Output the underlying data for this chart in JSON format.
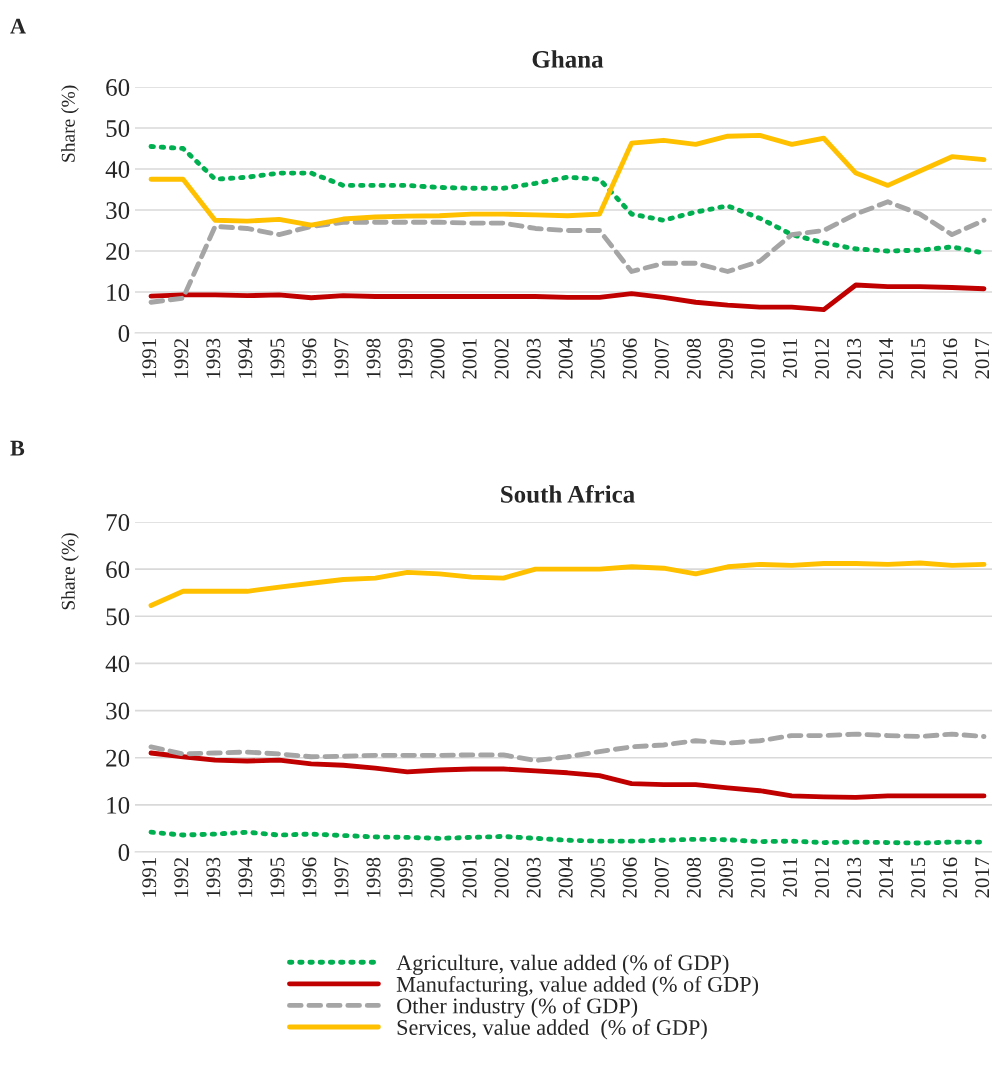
{
  "chart_data": [
    {
      "type": "line",
      "title": "Ghana",
      "ylabel": "Share (%)",
      "annotations": [
        "A"
      ],
      "categories": [
        "1991",
        "1992",
        "1993",
        "1994",
        "1995",
        "1996",
        "1997",
        "1998",
        "1999",
        "2000",
        "2001",
        "2002",
        "2003",
        "2004",
        "2005",
        "2006",
        "2007",
        "2008",
        "2009",
        "2010",
        "2011",
        "2012",
        "2013",
        "2014",
        "2015",
        "2016",
        "2017"
      ],
      "ylim": [
        0,
        60
      ],
      "yticks": [
        0,
        10,
        20,
        30,
        40,
        50,
        60
      ],
      "grid": "y",
      "series": [
        {
          "color": "#00b050",
          "line_style": "dotted",
          "values": [
            45.5,
            45,
            37.5,
            38,
            39,
            39,
            36,
            36,
            36,
            35.5,
            35.3,
            35.3,
            36.5,
            38,
            37.5,
            29,
            27.5,
            29.5,
            31,
            28,
            24,
            22,
            20.5,
            20,
            20.2,
            21,
            19.5
          ]
        },
        {
          "color": "#c00000",
          "line_style": "solid",
          "values": [
            9,
            9.3,
            9.3,
            9.1,
            9.3,
            8.6,
            9.1,
            8.9,
            8.9,
            8.9,
            8.9,
            8.9,
            8.9,
            8.7,
            8.7,
            9.6,
            8.7,
            7.5,
            6.8,
            6.3,
            6.3,
            5.7,
            11.7,
            11.3,
            11.3,
            11.1,
            10.8
          ]
        },
        {
          "color": "#a5a5a5",
          "line_style": "dashed",
          "values": [
            7.5,
            8.5,
            26,
            25.5,
            24,
            26,
            27,
            27,
            27,
            27,
            26.8,
            26.8,
            25.5,
            25,
            25,
            15,
            17,
            17,
            15,
            17.5,
            24,
            25,
            29,
            32,
            29,
            24,
            27.5
          ]
        },
        {
          "color": "#ffc000",
          "line_style": "solid",
          "values": [
            37.5,
            37.5,
            27.5,
            27.3,
            27.7,
            26.3,
            27.8,
            28.3,
            28.5,
            28.6,
            29,
            29,
            28.8,
            28.6,
            29,
            46.3,
            47,
            46,
            48,
            48.2,
            46,
            47.5,
            39,
            36,
            39.5,
            43,
            42.3
          ]
        }
      ]
    },
    {
      "type": "line",
      "title": "South Africa",
      "ylabel": "Share (%)",
      "annotations": [
        "B"
      ],
      "categories": [
        "1991",
        "1992",
        "1993",
        "1994",
        "1995",
        "1996",
        "1997",
        "1998",
        "1999",
        "2000",
        "2001",
        "2002",
        "2003",
        "2004",
        "2005",
        "2006",
        "2007",
        "2008",
        "2009",
        "2010",
        "2011",
        "2012",
        "2013",
        "2014",
        "2015",
        "2016",
        "2017"
      ],
      "ylim": [
        0,
        70
      ],
      "yticks": [
        0,
        10,
        20,
        30,
        40,
        50,
        60,
        70
      ],
      "grid": "y",
      "legend": "bottom",
      "series": [
        {
          "name": "Agriculture, value added (% of GDP)",
          "color": "#00b050",
          "line_style": "dotted",
          "values": [
            4.2,
            3.6,
            3.8,
            4.2,
            3.6,
            3.8,
            3.5,
            3.2,
            3.1,
            2.9,
            3.1,
            3.3,
            2.9,
            2.5,
            2.3,
            2.3,
            2.5,
            2.7,
            2.6,
            2.2,
            2.3,
            2.0,
            2.1,
            2.0,
            1.9,
            2.1,
            2.1
          ]
        },
        {
          "name": "Manufacturing, value added (% of GDP)",
          "color": "#c00000",
          "line_style": "solid",
          "values": [
            21,
            20.2,
            19.5,
            19.3,
            19.5,
            18.7,
            18.4,
            17.8,
            17,
            17.4,
            17.6,
            17.6,
            17.2,
            16.8,
            16.2,
            14.5,
            14.3,
            14.3,
            13.6,
            13,
            11.9,
            11.7,
            11.6,
            11.9,
            11.9,
            11.9,
            11.9
          ]
        },
        {
          "name": "Other industry (% of GDP)",
          "color": "#a5a5a5",
          "line_style": "dashed",
          "values": [
            22.3,
            20.8,
            21,
            21.2,
            20.8,
            20.2,
            20.3,
            20.5,
            20.5,
            20.5,
            20.6,
            20.6,
            19.4,
            20.2,
            21.3,
            22.3,
            22.7,
            23.6,
            23.1,
            23.6,
            24.7,
            24.7,
            25,
            24.7,
            24.5,
            25,
            24.5
          ]
        },
        {
          "name": "Services, value added  (% of GDP)",
          "color": "#ffc000",
          "line_style": "solid",
          "values": [
            52.3,
            55.3,
            55.3,
            55.3,
            56.2,
            57,
            57.8,
            58.1,
            59.3,
            59,
            58.3,
            58.1,
            60,
            60,
            60,
            60.5,
            60.2,
            59,
            60.5,
            61,
            60.8,
            61.2,
            61.2,
            61,
            61.3,
            60.8,
            61
          ]
        }
      ]
    }
  ]
}
